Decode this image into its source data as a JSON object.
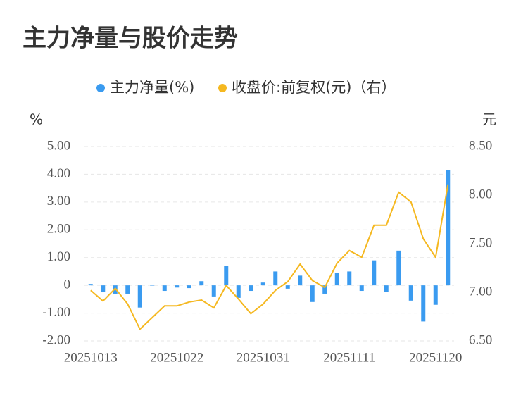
{
  "chart_data": {
    "type": "bar_line",
    "title": "主力净量与股价走势",
    "y_label": "%",
    "y2_label": "元",
    "categories": [
      "20251013",
      null,
      null,
      null,
      null,
      null,
      null,
      "20251022",
      null,
      null,
      null,
      null,
      null,
      null,
      "20251031",
      null,
      null,
      null,
      null,
      null,
      null,
      "20251111",
      null,
      null,
      null,
      null,
      null,
      null,
      "20251120",
      null
    ],
    "series": [
      {
        "name": "主力净量(%)",
        "color": "#3a9bf0",
        "values": [
          0.05,
          -0.25,
          -0.3,
          -0.3,
          -0.8,
          0,
          -0.2,
          -0.08,
          -0.1,
          0.15,
          -0.4,
          0.7,
          -0.45,
          -0.2,
          0.1,
          0.5,
          -0.12,
          0.35,
          -0.6,
          -0.3,
          0.45,
          0.5,
          -0.2,
          0.9,
          -0.25,
          1.25,
          -0.55,
          -1.3,
          -0.7,
          4.15
        ]
      },
      {
        "name": "收盘价:前复权(元)（右）",
        "color": "#f5b820",
        "axis": "y2",
        "values": [
          7.02,
          6.91,
          7.04,
          6.88,
          6.62,
          6.74,
          6.86,
          6.86,
          6.9,
          6.92,
          6.84,
          7.07,
          6.93,
          6.78,
          6.88,
          7.02,
          7.11,
          7.29,
          7.12,
          7.05,
          7.3,
          7.43,
          7.36,
          7.69,
          7.69,
          8.03,
          7.93,
          7.55,
          7.36,
          8.11
        ]
      }
    ],
    "ylim": [
      -2,
      5
    ],
    "yticks": [
      {
        "value": -2,
        "label": "-2.00"
      },
      {
        "value": -1,
        "label": "-1.00"
      },
      0,
      {
        "value": 1,
        "label": "1.00"
      },
      {
        "value": 2,
        "label": "2.00"
      },
      {
        "value": 3,
        "label": "3.00"
      },
      {
        "value": 4,
        "label": "4.00"
      },
      {
        "value": 5,
        "label": "5.00"
      }
    ],
    "y2lim": [
      6.5,
      8.5
    ],
    "y2ticks": [
      {
        "value": 6.5,
        "label": "6.50"
      },
      {
        "value": 7,
        "label": "7.00"
      },
      {
        "value": 7.5,
        "label": "7.50"
      },
      {
        "value": 8,
        "label": "8.00"
      },
      {
        "value": 8.5,
        "label": "8.50"
      }
    ],
    "grid": true
  }
}
